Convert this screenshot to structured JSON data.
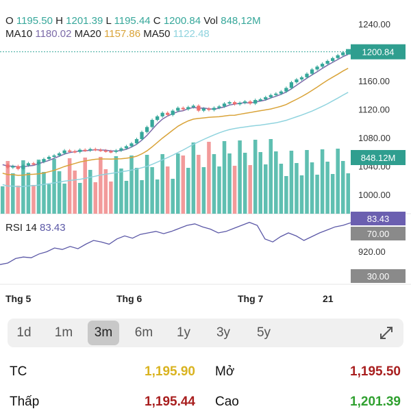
{
  "ohlc": {
    "o_label": "O",
    "o": "1195.50",
    "h_label": "H",
    "h": "1201.39",
    "l_label": "L",
    "l": "1195.44",
    "c_label": "C",
    "c": "1200.84",
    "vol_label": "Vol",
    "vol": "848,12M"
  },
  "ma": {
    "ma10_label": "MA10",
    "ma10": "1180.02",
    "ma20_label": "MA20",
    "ma20": "1157.86",
    "ma50_label": "MA50",
    "ma50": "1122.48"
  },
  "rsi": {
    "label": "RSI 14",
    "value": "83.43"
  },
  "badges": {
    "price": "1200.84",
    "volume": "848.12M",
    "rsi": "83.43",
    "rsi_upper": "70.00",
    "rsi_lower": "30.00"
  },
  "chart_data": {
    "type": "candlestick",
    "y_ticks": [
      "1240.00",
      "1200.00",
      "1160.00",
      "1120.00",
      "1080.00",
      "1040.00",
      "1000.00"
    ],
    "rsi_tick": "920.00",
    "x_labels": [
      "Thg 5",
      "Thg 6",
      "Thg 7",
      "21"
    ],
    "close": [
      1042,
      1038,
      1040,
      1036,
      1041,
      1044,
      1043,
      1046,
      1050,
      1053,
      1055,
      1058,
      1062,
      1061,
      1060,
      1063,
      1062,
      1064,
      1063,
      1062,
      1061,
      1060,
      1062,
      1065,
      1068,
      1072,
      1078,
      1088,
      1095,
      1105,
      1110,
      1115,
      1112,
      1118,
      1122,
      1120,
      1123,
      1125,
      1118,
      1121,
      1119,
      1122,
      1124,
      1128,
      1130,
      1127,
      1129,
      1131,
      1128,
      1133,
      1134,
      1137,
      1140,
      1142,
      1145,
      1150,
      1158,
      1162,
      1165,
      1170,
      1176,
      1180,
      1184,
      1188,
      1192,
      1196,
      1200,
      1200.84
    ],
    "rsi_values": [
      28,
      30,
      36,
      38,
      37,
      42,
      45,
      50,
      48,
      52,
      49,
      55,
      60,
      58,
      55,
      62,
      66,
      63,
      68,
      70,
      72,
      69,
      72,
      76,
      80,
      82,
      78,
      75,
      70,
      72,
      76,
      80,
      84,
      80,
      62,
      58,
      65,
      70,
      66,
      60,
      65,
      70,
      74,
      78,
      80,
      83.43
    ],
    "colors": {
      "up": "#36a79a",
      "down": "#ef6f6f",
      "ma10": "#7b6aa8",
      "ma20": "#d9a338",
      "ma50": "#8fd3de",
      "rsi": "#5a57a6"
    }
  },
  "ranges": [
    "1d",
    "1m",
    "3m",
    "6m",
    "1y",
    "3y",
    "5y"
  ],
  "active_range": "3m",
  "expand_icon": "expand-icon",
  "stats": {
    "tc_label": "TC",
    "tc": "1,195.90",
    "open_label": "Mở",
    "open": "1,195.50",
    "low_label": "Thấp",
    "low": "1,195.44",
    "high_label": "Cao",
    "high": "1,201.39"
  }
}
